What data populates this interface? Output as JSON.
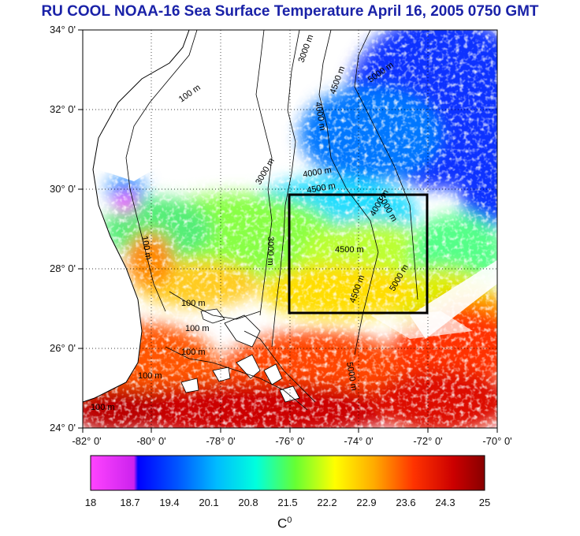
{
  "title": "RU COOL  NOAA-16 Sea Surface Temperature April 16, 2005 0750 GMT",
  "map": {
    "lat_range": [
      24,
      34
    ],
    "lon_range": [
      -82,
      -70
    ],
    "lat_labels": [
      "34° 0'",
      "32° 0'",
      "30° 0'",
      "28° 0'",
      "26° 0'",
      "24° 0'"
    ],
    "lon_labels": [
      "-82° 0'",
      "-80° 0'",
      "-78° 0'",
      "-76° 0'",
      "-74° 0'",
      "-72° 0'",
      "-70° 0'"
    ],
    "box_region": {
      "lon_min": -76,
      "lon_max": -72,
      "lat_min": 27,
      "lat_max": 30
    },
    "contour_labels": [
      "100 m",
      "100 m",
      "100 m",
      "100 m",
      "100 m",
      "100 m",
      "100 m",
      "3000 m",
      "4000 m",
      "4500 m",
      "5000 m",
      "3000 m",
      "4000 m",
      "4500 m",
      "4500 m",
      "5000 m",
      "5000 m",
      "4000 m",
      "4500 m",
      "3000 m",
      "5000 m"
    ]
  },
  "colorbar": {
    "labels": [
      "18",
      "18.7",
      "19.4",
      "20.1",
      "20.8",
      "21.5",
      "22.2",
      "22.9",
      "23.6",
      "24.3",
      "25"
    ],
    "unit_base": "C",
    "unit_sup": "0",
    "colors": [
      "#ff44ff",
      "#cc22ee",
      "#0000ff",
      "#0066ff",
      "#00ccff",
      "#00ffcc",
      "#66ff33",
      "#ffff00",
      "#ffaa00",
      "#ff3300",
      "#cc0000",
      "#880000"
    ]
  }
}
